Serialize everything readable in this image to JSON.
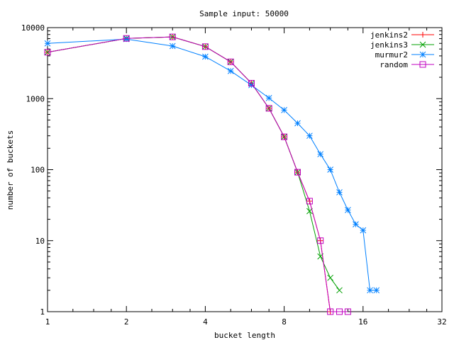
{
  "chart_data": {
    "type": "line",
    "title": "Sample input: 50000",
    "xlabel": "bucket length",
    "ylabel": "number of buckets",
    "x_scale": "log2",
    "y_scale": "log10",
    "xlim": [
      1,
      32
    ],
    "ylim": [
      1,
      10000
    ],
    "grid": false,
    "legend_position": "top-right",
    "x_ticks": [
      {
        "value": 1,
        "label": "1"
      },
      {
        "value": 2,
        "label": "2"
      },
      {
        "value": 4,
        "label": "4"
      },
      {
        "value": 8,
        "label": "8"
      },
      {
        "value": 16,
        "label": "16"
      },
      {
        "value": 32,
        "label": "32"
      }
    ],
    "y_ticks": [
      {
        "value": 1,
        "label": "1"
      },
      {
        "value": 10,
        "label": "10"
      },
      {
        "value": 100,
        "label": "100"
      },
      {
        "value": 1000,
        "label": "1000"
      },
      {
        "value": 10000,
        "label": "10000"
      }
    ],
    "series": [
      {
        "name": "jenkins2",
        "color": "#ff0000",
        "marker": "plus",
        "points": [
          [
            1,
            4500
          ],
          [
            2,
            7050
          ],
          [
            3,
            7400
          ],
          [
            4,
            5400
          ],
          [
            5,
            3300
          ],
          [
            6,
            1650
          ],
          [
            7,
            730
          ],
          [
            8,
            290
          ],
          [
            9,
            92
          ],
          [
            10,
            36
          ],
          [
            11,
            10
          ],
          [
            12,
            1
          ]
        ]
      },
      {
        "name": "jenkins3",
        "color": "#00a000",
        "marker": "cross",
        "points": [
          [
            1,
            4500
          ],
          [
            2,
            7050
          ],
          [
            3,
            7400
          ],
          [
            4,
            5400
          ],
          [
            5,
            3300
          ],
          [
            6,
            1650
          ],
          [
            7,
            730
          ],
          [
            8,
            290
          ],
          [
            9,
            92
          ],
          [
            10,
            26
          ],
          [
            11,
            6
          ],
          [
            12,
            3
          ],
          [
            13,
            2
          ]
        ]
      },
      {
        "name": "murmur2",
        "color": "#0080ff",
        "marker": "star",
        "points": [
          [
            1,
            6000
          ],
          [
            2,
            6900
          ],
          [
            3,
            5500
          ],
          [
            4,
            3900
          ],
          [
            5,
            2450
          ],
          [
            6,
            1550
          ],
          [
            7,
            1020
          ],
          [
            8,
            690
          ],
          [
            9,
            450
          ],
          [
            10,
            300
          ],
          [
            11,
            165
          ],
          [
            12,
            100
          ],
          [
            13,
            48
          ],
          [
            14,
            27
          ],
          [
            15,
            17
          ],
          [
            16,
            14
          ],
          [
            17,
            2
          ],
          [
            18,
            2
          ]
        ]
      },
      {
        "name": "random",
        "color": "#c000c0",
        "marker": "square",
        "points": [
          [
            1,
            4500
          ],
          [
            2,
            7050
          ],
          [
            3,
            7400
          ],
          [
            4,
            5400
          ],
          [
            5,
            3300
          ],
          [
            6,
            1650
          ],
          [
            7,
            730
          ],
          [
            8,
            290
          ],
          [
            9,
            92
          ],
          [
            10,
            36
          ],
          [
            11,
            10
          ],
          [
            12,
            1
          ],
          [
            13,
            1
          ],
          [
            14,
            1
          ]
        ]
      }
    ]
  }
}
